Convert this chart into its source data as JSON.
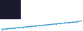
{
  "x": [
    0,
    1,
    2,
    3,
    4,
    5,
    6,
    7,
    8,
    9,
    10,
    11,
    12,
    13,
    14,
    15,
    16,
    17,
    18,
    19
  ],
  "y": [
    0,
    0.05,
    0.1,
    0.15,
    0.2,
    0.25,
    0.3,
    0.35,
    0.4,
    0.45,
    0.5,
    0.55,
    0.6,
    0.65,
    0.7,
    0.75,
    0.8,
    0.85,
    0.9,
    1.0
  ],
  "line_color": "#3399cc",
  "line_width": 1.0,
  "background_color": "#ffffff",
  "dark_box_color": "#1a1a2e",
  "marker": "o",
  "marker_size": 1.2,
  "ylim": [
    -0.2,
    3.5
  ],
  "xlim": [
    -0.5,
    19.5
  ]
}
